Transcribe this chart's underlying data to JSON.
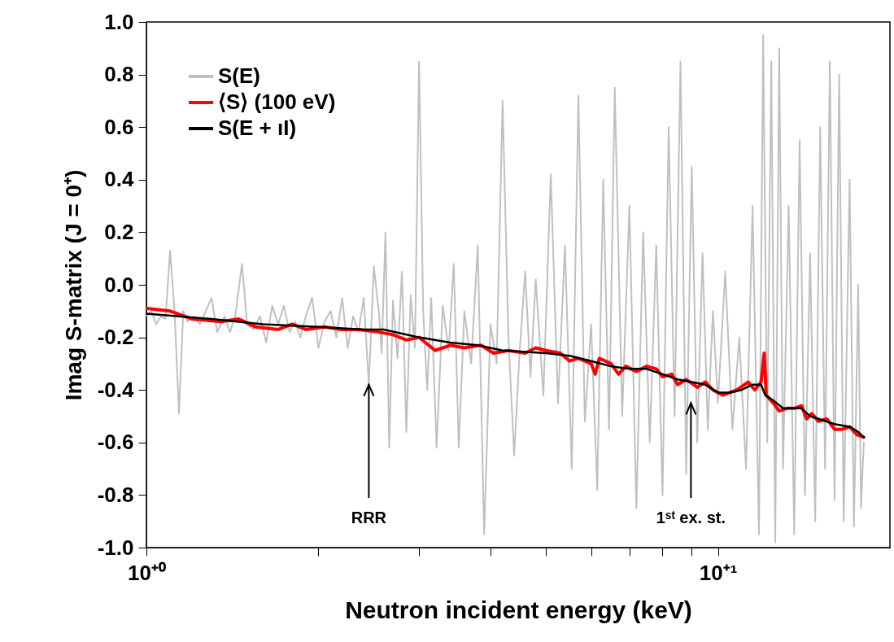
{
  "chart_data": {
    "type": "line",
    "xlabel": "Neutron incident energy (keV)",
    "ylabel": "Imag S-matrix (J = 0⁺)",
    "log": "x",
    "xlim": [
      1,
      20
    ],
    "ylim": [
      -1,
      1
    ],
    "xticks": [
      {
        "value": 1,
        "label": "10⁺⁰"
      },
      {
        "value": 2,
        "label": null
      },
      {
        "value": 3,
        "label": null
      },
      {
        "value": 4,
        "label": null
      },
      {
        "value": 5,
        "label": null
      },
      {
        "value": 6,
        "label": null
      },
      {
        "value": 7,
        "label": null
      },
      {
        "value": 8,
        "label": null
      },
      {
        "value": 9,
        "label": null
      },
      {
        "value": 10,
        "label": "10⁺¹"
      }
    ],
    "yticks": [
      {
        "value": -1,
        "label": "-1.0"
      },
      -0.8,
      -0.6,
      -0.4,
      -0.2,
      {
        "value": 0,
        "label": "0.0"
      },
      0.2,
      0.4,
      0.6,
      0.8,
      {
        "value": 1,
        "label": "1.0"
      }
    ],
    "legend": "top left",
    "line_style": "solid",
    "annotations": [
      {
        "text": "RRR",
        "x": 2.45,
        "y": -0.38
      },
      {
        "text": "1ˢᵗ ex. st.",
        "x": 8.97,
        "y": -0.45
      }
    ],
    "series": [
      {
        "name": "S(E)",
        "color": "#c0c0c0",
        "x": [
          1.0,
          1.02,
          1.04,
          1.06,
          1.08,
          1.1,
          1.12,
          1.14,
          1.16,
          1.18,
          1.21,
          1.24,
          1.27,
          1.3,
          1.33,
          1.37,
          1.4,
          1.43,
          1.47,
          1.5,
          1.54,
          1.58,
          1.62,
          1.66,
          1.7,
          1.74,
          1.78,
          1.82,
          1.86,
          1.9,
          1.95,
          2.0,
          2.05,
          2.1,
          2.15,
          2.2,
          2.25,
          2.3,
          2.35,
          2.4,
          2.45,
          2.5,
          2.55,
          2.58,
          2.62,
          2.66,
          2.7,
          2.75,
          2.8,
          2.85,
          2.9,
          2.95,
          3.0,
          3.05,
          3.1,
          3.15,
          3.22,
          3.3,
          3.38,
          3.45,
          3.52,
          3.6,
          3.7,
          3.8,
          3.9,
          4.0,
          4.1,
          4.2,
          4.3,
          4.4,
          4.5,
          4.6,
          4.7,
          4.8,
          4.95,
          5.1,
          5.25,
          5.4,
          5.55,
          5.7,
          5.85,
          6.0,
          6.15,
          6.3,
          6.45,
          6.6,
          6.8,
          7.0,
          7.2,
          7.4,
          7.6,
          7.8,
          8.0,
          8.2,
          8.4,
          8.6,
          8.8,
          9.0,
          9.2,
          9.4,
          9.6,
          9.8,
          10.0,
          10.3,
          10.6,
          10.9,
          11.2,
          11.5,
          11.8,
          12.0,
          12.2,
          12.4,
          12.6,
          12.8,
          13.0,
          13.3,
          13.6,
          13.9,
          14.2,
          14.5,
          14.8,
          15.1,
          15.4,
          15.7,
          16.0,
          16.3,
          16.6,
          17.0,
          17.3,
          17.6,
          17.8,
          18.0
        ],
        "values": [
          -0.12,
          -0.1,
          -0.15,
          -0.12,
          -0.13,
          0.13,
          -0.1,
          -0.49,
          -0.1,
          -0.14,
          -0.12,
          -0.15,
          -0.1,
          -0.05,
          -0.18,
          -0.12,
          -0.18,
          -0.12,
          0.08,
          -0.15,
          -0.17,
          -0.12,
          -0.22,
          -0.08,
          -0.15,
          -0.08,
          -0.18,
          -0.14,
          -0.2,
          -0.12,
          -0.05,
          -0.24,
          -0.14,
          -0.1,
          -0.2,
          -0.05,
          -0.24,
          -0.12,
          -0.18,
          -0.05,
          -0.38,
          0.07,
          -0.1,
          -0.26,
          0.2,
          -0.62,
          -0.06,
          -0.28,
          0.05,
          -0.56,
          -0.04,
          -0.24,
          0.85,
          -0.1,
          -0.4,
          -0.05,
          -0.62,
          -0.08,
          -0.25,
          0.08,
          -0.62,
          -0.1,
          -0.3,
          0.15,
          -0.95,
          -0.15,
          -0.3,
          0.7,
          -0.2,
          -0.65,
          -0.25,
          0.05,
          -0.35,
          0.02,
          -0.42,
          0.42,
          -0.45,
          0.15,
          -0.7,
          0.72,
          -0.52,
          -0.15,
          -0.78,
          0.4,
          -0.55,
          0.75,
          -0.5,
          0.3,
          -0.85,
          0.2,
          -0.6,
          0.15,
          -0.8,
          0.6,
          -0.5,
          0.85,
          -0.72,
          0.45,
          -0.6,
          0.12,
          -0.55,
          -0.1,
          -0.45,
          0.05,
          -0.55,
          -0.2,
          -0.7,
          0.3,
          -0.95,
          0.95,
          -0.6,
          0.85,
          -0.98,
          0.9,
          -0.7,
          0.3,
          -0.95,
          0.55,
          -0.8,
          0.12,
          -0.9,
          0.6,
          -0.7,
          0.85,
          -0.82,
          0.8,
          -0.9,
          0.4,
          -0.92,
          0.0,
          -0.85,
          -0.6
        ]
      },
      {
        "name": "⟨S⟩ (100 eV)",
        "color": "#ff0000",
        "x": [
          1.0,
          1.1,
          1.2,
          1.35,
          1.45,
          1.55,
          1.7,
          1.8,
          1.9,
          2.05,
          2.2,
          2.35,
          2.55,
          2.7,
          2.85,
          3.0,
          3.2,
          3.4,
          3.6,
          3.85,
          4.05,
          4.3,
          4.6,
          4.8,
          5.0,
          5.3,
          5.5,
          5.7,
          6.0,
          6.1,
          6.2,
          6.5,
          6.7,
          6.9,
          7.2,
          7.5,
          7.8,
          8.0,
          8.3,
          8.5,
          8.8,
          9.2,
          9.5,
          9.8,
          10.2,
          10.8,
          11.3,
          11.6,
          11.9,
          12.05,
          12.15,
          12.5,
          12.8,
          13.2,
          13.6,
          14.0,
          14.3,
          14.6,
          15.0,
          15.5,
          16.0,
          16.5,
          17.0,
          17.5,
          18.0
        ],
        "values": [
          -0.09,
          -0.1,
          -0.13,
          -0.14,
          -0.13,
          -0.16,
          -0.17,
          -0.15,
          -0.17,
          -0.16,
          -0.17,
          -0.17,
          -0.18,
          -0.19,
          -0.21,
          -0.2,
          -0.25,
          -0.23,
          -0.24,
          -0.23,
          -0.26,
          -0.25,
          -0.26,
          -0.24,
          -0.25,
          -0.26,
          -0.29,
          -0.28,
          -0.3,
          -0.34,
          -0.28,
          -0.3,
          -0.34,
          -0.31,
          -0.33,
          -0.31,
          -0.32,
          -0.35,
          -0.34,
          -0.38,
          -0.36,
          -0.39,
          -0.37,
          -0.4,
          -0.42,
          -0.4,
          -0.37,
          -0.4,
          -0.37,
          -0.26,
          -0.42,
          -0.45,
          -0.48,
          -0.47,
          -0.47,
          -0.46,
          -0.51,
          -0.49,
          -0.52,
          -0.51,
          -0.55,
          -0.55,
          -0.54,
          -0.57,
          -0.58
        ]
      },
      {
        "name": "S(E + ıI)",
        "color": "#000000",
        "x": [
          1.0,
          1.3,
          1.6,
          2.0,
          2.4,
          2.6,
          3.0,
          3.4,
          3.8,
          4.2,
          5.0,
          5.5,
          6.0,
          6.5,
          7.0,
          7.5,
          8.0,
          8.5,
          9.0,
          9.5,
          10.0,
          10.5,
          11.0,
          11.5,
          11.9,
          12.1,
          12.5,
          13.0,
          13.5,
          14.0,
          14.5,
          15.0,
          15.5,
          16.0,
          17.0,
          17.6,
          18.0
        ],
        "values": [
          -0.11,
          -0.13,
          -0.15,
          -0.16,
          -0.17,
          -0.17,
          -0.2,
          -0.22,
          -0.23,
          -0.25,
          -0.26,
          -0.27,
          -0.29,
          -0.31,
          -0.32,
          -0.32,
          -0.34,
          -0.36,
          -0.37,
          -0.38,
          -0.41,
          -0.41,
          -0.4,
          -0.38,
          -0.38,
          -0.42,
          -0.44,
          -0.47,
          -0.47,
          -0.47,
          -0.5,
          -0.51,
          -0.52,
          -0.53,
          -0.54,
          -0.56,
          -0.58
        ]
      }
    ]
  }
}
